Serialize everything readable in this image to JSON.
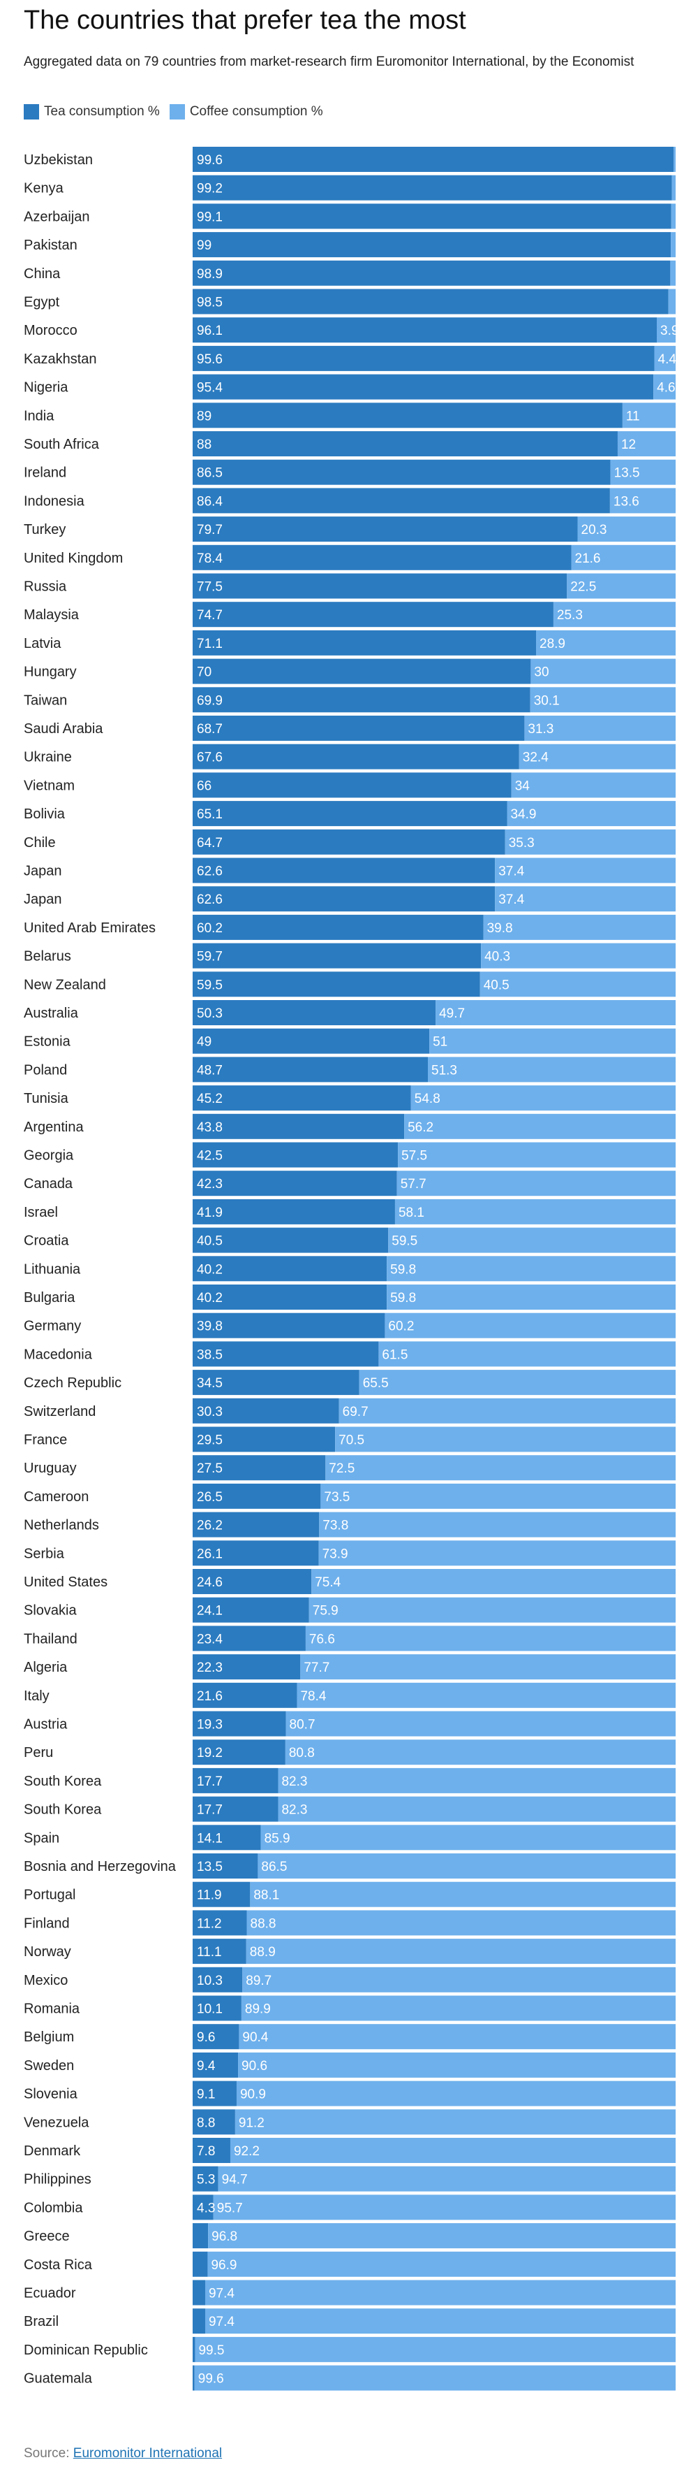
{
  "title": "The countries that prefer tea the most",
  "subtitle": "Aggregated data on 79 countries from market-research firm Euromonitor International, by the Economist",
  "source_label": "Source:",
  "source_link": "Euromonitor International",
  "colors": {
    "tea": "#2b7bc0",
    "coffee": "#6eb0ec"
  },
  "chart_data": {
    "type": "bar",
    "orientation": "horizontal",
    "stacked": true,
    "xlim": [
      0,
      100
    ],
    "grid": false,
    "legend": "top-left",
    "categories": [
      "Uzbekistan",
      "Kenya",
      "Azerbaijan",
      "Pakistan",
      "China",
      "Egypt",
      "Morocco",
      "Kazakhstan",
      "Nigeria",
      "India",
      "South Africa",
      "Ireland",
      "Indonesia",
      "Turkey",
      "United Kingdom",
      "Russia",
      "Malaysia",
      "Latvia",
      "Hungary",
      "Taiwan",
      "Saudi Arabia",
      "Ukraine",
      "Vietnam",
      "Bolivia",
      "Chile",
      "Japan",
      "Japan",
      "United Arab Emirates",
      "Belarus",
      "New Zealand",
      "Australia",
      "Estonia",
      "Poland",
      "Tunisia",
      "Argentina",
      "Georgia",
      "Canada",
      "Israel",
      "Croatia",
      "Lithuania",
      "Bulgaria",
      "Germany",
      "Macedonia",
      "Czech Republic",
      "Switzerland",
      "France",
      "Uruguay",
      "Cameroon",
      "Netherlands",
      "Serbia",
      "United States",
      "Slovakia",
      "Thailand",
      "Algeria",
      "Italy",
      "Austria",
      "Peru",
      "South Korea",
      "South Korea",
      "Spain",
      "Bosnia and Herzegovina",
      "Portugal",
      "Finland",
      "Norway",
      "Mexico",
      "Romania",
      "Belgium",
      "Sweden",
      "Slovenia",
      "Venezuela",
      "Denmark",
      "Philippines",
      "Colombia",
      "Greece",
      "Costa Rica",
      "Ecuador",
      "Brazil",
      "Dominican Republic",
      "Guatemala"
    ],
    "series": [
      {
        "name": "Tea consumption %",
        "values": [
          99.6,
          99.2,
          99.1,
          99,
          98.9,
          98.5,
          96.1,
          95.6,
          95.4,
          89,
          88,
          86.5,
          86.4,
          79.7,
          78.4,
          77.5,
          74.7,
          71.1,
          70,
          69.9,
          68.7,
          67.6,
          66,
          65.1,
          64.7,
          62.6,
          62.6,
          60.2,
          59.7,
          59.5,
          50.3,
          49,
          48.7,
          45.2,
          43.8,
          42.5,
          42.3,
          41.9,
          40.5,
          40.2,
          40.2,
          39.8,
          38.5,
          34.5,
          30.3,
          29.5,
          27.5,
          26.5,
          26.2,
          26.1,
          24.6,
          24.1,
          23.4,
          22.3,
          21.6,
          19.3,
          19.2,
          17.7,
          17.7,
          14.1,
          13.5,
          11.9,
          11.2,
          11.1,
          10.3,
          10.1,
          9.6,
          9.4,
          9.1,
          8.8,
          7.8,
          5.3,
          4.3,
          3.2,
          3.1,
          2.6,
          2.6,
          0.5,
          0.4
        ]
      },
      {
        "name": "Coffee consumption %",
        "values": [
          0.4,
          0.8,
          0.9,
          1,
          1.1,
          1.5,
          3.9,
          4.4,
          4.6,
          11,
          12,
          13.5,
          13.6,
          20.3,
          21.6,
          22.5,
          25.3,
          28.9,
          30,
          30.1,
          31.3,
          32.4,
          34,
          34.9,
          35.3,
          37.4,
          37.4,
          39.8,
          40.3,
          40.5,
          49.7,
          51,
          51.3,
          54.8,
          56.2,
          57.5,
          57.7,
          58.1,
          59.5,
          59.8,
          59.8,
          60.2,
          61.5,
          65.5,
          69.7,
          70.5,
          72.5,
          73.5,
          73.8,
          73.9,
          75.4,
          75.9,
          76.6,
          77.7,
          78.4,
          80.7,
          80.8,
          82.3,
          82.3,
          85.9,
          86.5,
          88.1,
          88.8,
          88.9,
          89.7,
          89.9,
          90.4,
          90.6,
          90.9,
          91.2,
          92.2,
          94.7,
          95.7,
          96.8,
          96.9,
          97.4,
          97.4,
          99.5,
          99.6
        ]
      }
    ]
  }
}
